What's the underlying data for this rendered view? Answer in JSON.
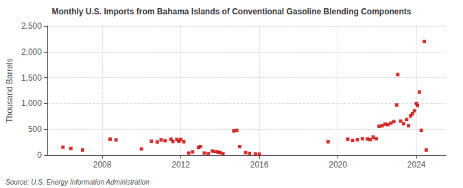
{
  "chart_data": {
    "type": "scatter",
    "title": "Monthly U.S. Imports from Bahama Islands of Conventional Gasoline Blending Components",
    "ylabel": "Thousand Barrels",
    "annotation": "Source: U.S. Energy Information Administration",
    "color": "#cc0000",
    "marker": "square",
    "grid": true,
    "xlim": [
      2005.2,
      2025.5
    ],
    "xticks": [
      2008,
      2012,
      2016,
      2020,
      2024
    ],
    "ylim": [
      0,
      2500
    ],
    "yticks": [
      0,
      500,
      {
        "value": 1000,
        "label": "1,000"
      },
      {
        "value": 1500,
        "label": "1,500"
      },
      {
        "value": 2000,
        "label": "2,000"
      },
      {
        "value": 2500,
        "label": "2,500"
      }
    ],
    "x": [
      2006.0,
      2006.4,
      2007.0,
      2008.4,
      2008.7,
      2010.0,
      2010.5,
      2010.8,
      2011.0,
      2011.2,
      2011.5,
      2011.6,
      2011.8,
      2011.9,
      2012.0,
      2012.15,
      2012.4,
      2012.6,
      2012.9,
      2013.0,
      2013.2,
      2013.4,
      2013.6,
      2013.75,
      2013.9,
      2014.0,
      2014.15,
      2014.7,
      2014.85,
      2015.0,
      2015.3,
      2015.5,
      2015.8,
      2016.0,
      2019.5,
      2020.5,
      2020.75,
      2021.0,
      2021.25,
      2021.5,
      2021.65,
      2021.8,
      2021.95,
      2022.1,
      2022.25,
      2022.4,
      2022.55,
      2022.7,
      2022.85,
      2023.0,
      2023.05,
      2023.2,
      2023.35,
      2023.5,
      2023.6,
      2023.7,
      2023.8,
      2023.9,
      2024.0,
      2024.05,
      2024.15,
      2024.25,
      2024.4,
      2024.5
    ],
    "values": [
      155,
      130,
      100,
      310,
      295,
      120,
      270,
      255,
      295,
      280,
      310,
      265,
      305,
      270,
      305,
      260,
      40,
      65,
      150,
      165,
      40,
      30,
      80,
      70,
      60,
      50,
      30,
      470,
      480,
      165,
      50,
      35,
      25,
      20,
      260,
      310,
      285,
      300,
      320,
      315,
      300,
      350,
      320,
      560,
      570,
      600,
      590,
      620,
      650,
      970,
      1560,
      660,
      610,
      690,
      570,
      760,
      800,
      860,
      1000,
      960,
      1220,
      480,
      2200,
      100
    ]
  }
}
